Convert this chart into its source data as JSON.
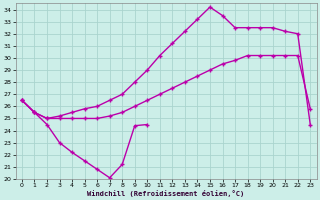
{
  "xlabel": "Windchill (Refroidissement éolien,°C)",
  "bg_color": "#cceee8",
  "grid_color": "#aad4ce",
  "line_color": "#bb00aa",
  "xlim": [
    -0.5,
    23.5
  ],
  "ylim": [
    20,
    34.5
  ],
  "xticks": [
    0,
    1,
    2,
    3,
    4,
    5,
    6,
    7,
    8,
    9,
    10,
    11,
    12,
    13,
    14,
    15,
    16,
    17,
    18,
    19,
    20,
    21,
    22,
    23
  ],
  "yticks": [
    20,
    21,
    22,
    23,
    24,
    25,
    26,
    27,
    28,
    29,
    30,
    31,
    32,
    33,
    34
  ],
  "series1_x": [
    0,
    1,
    2,
    3,
    4,
    5,
    6,
    7,
    8,
    9,
    10
  ],
  "series1_y": [
    26.5,
    25.5,
    24.5,
    23.0,
    22.2,
    21.5,
    20.8,
    20.1,
    21.2,
    24.4,
    24.5
  ],
  "series2_x": [
    0,
    1,
    2,
    3,
    4,
    5,
    6,
    7,
    8,
    9,
    10,
    11,
    12,
    13,
    14,
    15,
    16,
    17,
    18,
    19,
    20,
    21,
    22,
    23
  ],
  "series2_y": [
    26.5,
    25.5,
    25.0,
    25.0,
    25.0,
    25.0,
    25.0,
    25.2,
    25.5,
    26.0,
    26.5,
    27.0,
    27.5,
    28.0,
    28.5,
    29.0,
    29.5,
    29.8,
    30.2,
    30.2,
    30.2,
    30.2,
    30.2,
    25.8
  ],
  "series3_x": [
    0,
    1,
    2,
    3,
    4,
    5,
    6,
    7,
    8,
    9,
    10,
    11,
    12,
    13,
    14,
    15,
    16,
    17,
    18,
    19,
    20,
    21,
    22,
    23
  ],
  "series3_y": [
    26.5,
    25.5,
    25.0,
    25.2,
    25.5,
    25.8,
    26.0,
    26.5,
    27.0,
    28.0,
    29.0,
    30.2,
    31.2,
    32.2,
    33.2,
    34.2,
    33.5,
    32.5,
    32.5,
    32.5,
    32.5,
    32.2,
    32.0,
    24.5
  ]
}
